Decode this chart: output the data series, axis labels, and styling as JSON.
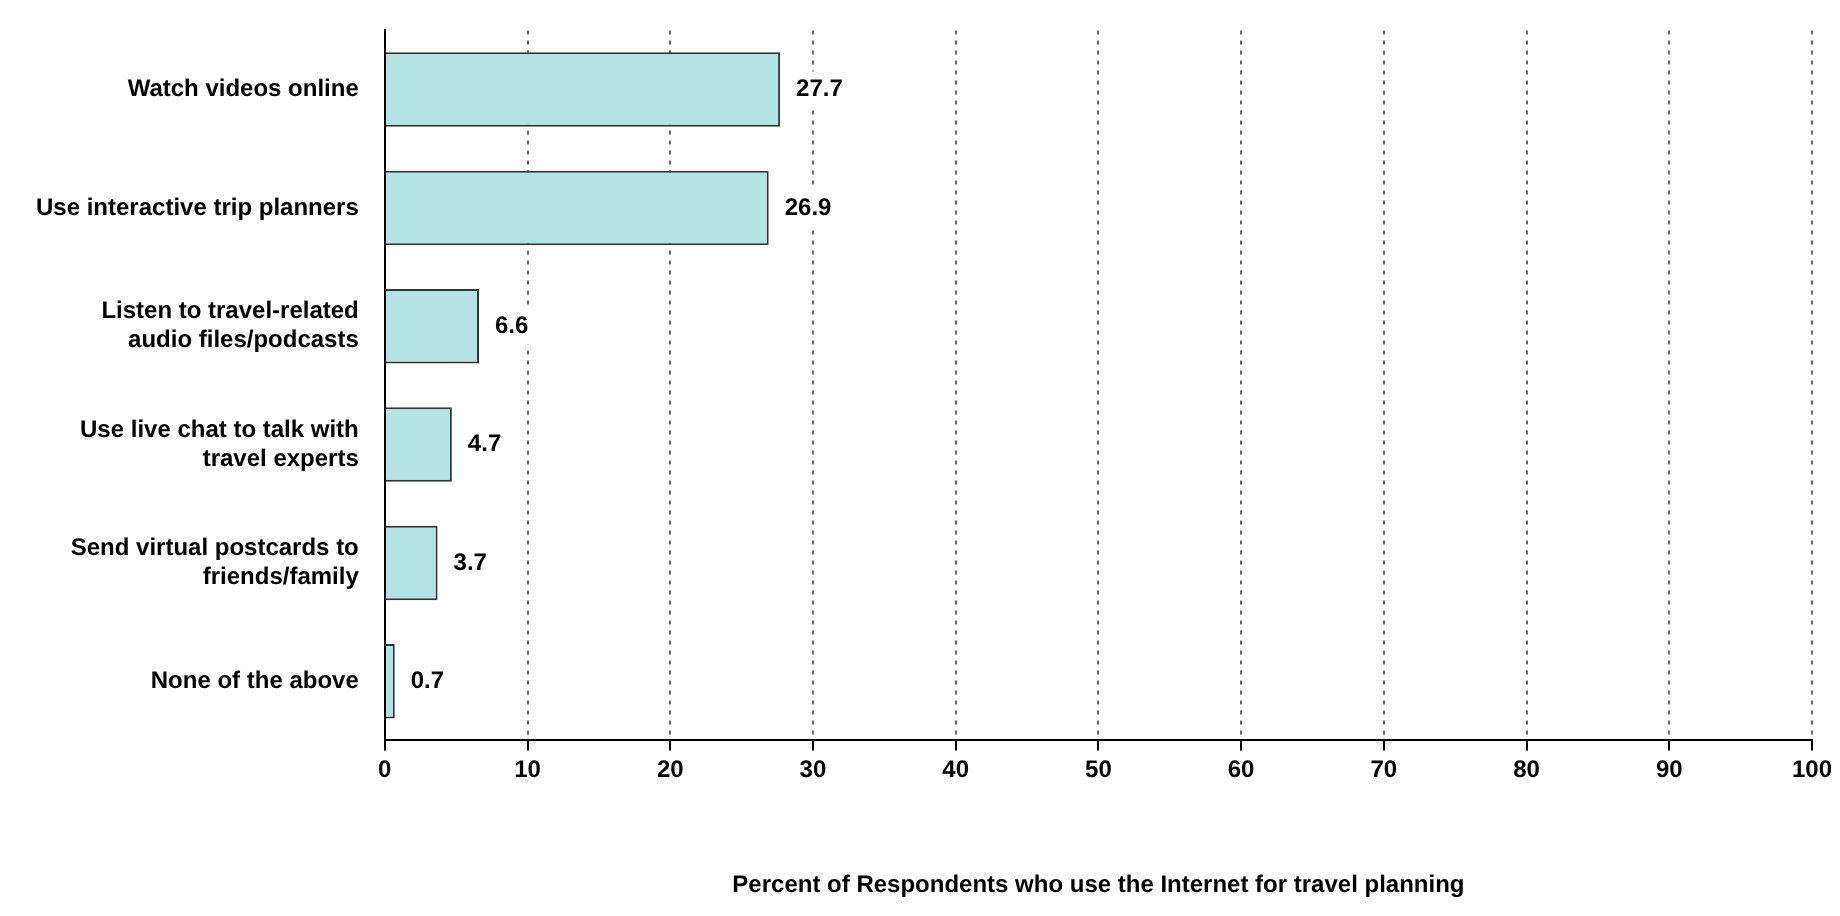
{
  "chart_data": {
    "type": "bar",
    "orientation": "horizontal",
    "xlabel": "Percent of Respondents who use the Internet for travel planning",
    "categories": [
      "Watch videos online",
      "Use interactive trip planners",
      "Listen to travel-related\naudio files/podcasts",
      "Use live chat to talk with\ntravel experts",
      "Send virtual postcards to\nfriends/family",
      "None of the above"
    ],
    "values": [
      27.7,
      26.9,
      6.6,
      4.7,
      3.7,
      0.7
    ],
    "color": "#b3e3e3",
    "xlim": [
      0,
      100
    ],
    "xticks": [
      0,
      10,
      20,
      30,
      40,
      50,
      60,
      70,
      80,
      90,
      100
    ],
    "grid": "x",
    "data_labels": true
  }
}
